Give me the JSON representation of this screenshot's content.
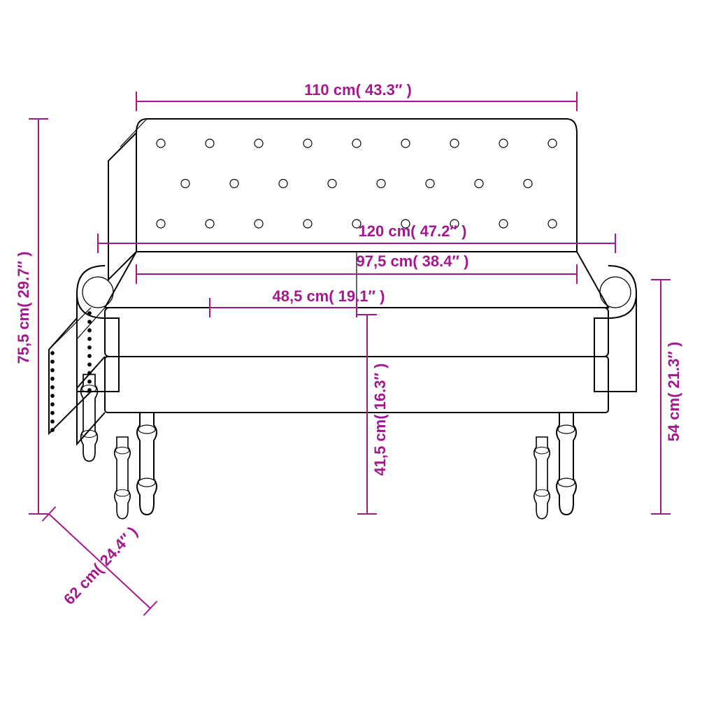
{
  "diagram": {
    "type": "technical-dimension-drawing",
    "subject": "bench-sofa",
    "outline_color": "#000000",
    "dimension_color": "#a3188f",
    "background_color": "#ffffff",
    "label_font_size": 22,
    "dimensions": {
      "back_top_width": {
        "text": "110 cm( 43.3″ )",
        "cm": 110,
        "in": 43.3
      },
      "arm_span": {
        "text": "120 cm( 47.2″ )",
        "cm": 120,
        "in": 47.2
      },
      "seat_inner_width": {
        "text": "97,5 cm( 38.4″ )",
        "cm": 97.5,
        "in": 38.4
      },
      "seat_depth": {
        "text": "48,5 cm( 19.1″ )",
        "cm": 48.5,
        "in": 19.1
      },
      "overall_height": {
        "text": "75,5 cm( 29.7″ )",
        "cm": 75.5,
        "in": 29.7
      },
      "depth": {
        "text": "62 cm( 24.4″ )",
        "cm": 62,
        "in": 24.4
      },
      "seat_height": {
        "text": "41,5 cm( 16.3″ )",
        "cm": 41.5,
        "in": 16.3
      },
      "arm_height": {
        "text": "54 cm( 21.3″ )",
        "cm": 54,
        "in": 21.3
      }
    },
    "tufting": {
      "rows": 3,
      "cols": 9
    }
  }
}
